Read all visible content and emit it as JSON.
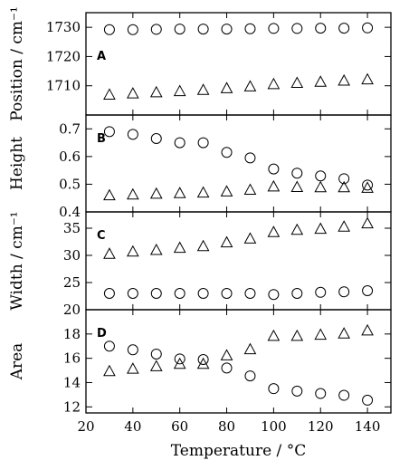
{
  "chart_data": [
    {
      "type": "scatter",
      "panel_label": "A",
      "ylabel": "Position / cm⁻¹",
      "xlim": [
        20,
        150
      ],
      "ylim": [
        1700,
        1735
      ],
      "yticks": [
        1710,
        1720,
        1730
      ],
      "grid": false,
      "series": [
        {
          "marker": "circle",
          "x": [
            30,
            40,
            50,
            60,
            70,
            80,
            90,
            100,
            110,
            120,
            130,
            140
          ],
          "y": [
            1729.2,
            1729.2,
            1729.3,
            1729.4,
            1729.4,
            1729.4,
            1729.5,
            1729.6,
            1729.6,
            1729.7,
            1729.7,
            1729.8
          ]
        },
        {
          "marker": "triangle",
          "x": [
            30,
            40,
            50,
            60,
            70,
            80,
            90,
            100,
            110,
            120,
            130,
            140
          ],
          "y": [
            1706.8,
            1707.2,
            1707.6,
            1708.0,
            1708.4,
            1709.0,
            1709.6,
            1710.4,
            1710.8,
            1711.2,
            1711.6,
            1712.0
          ]
        }
      ]
    },
    {
      "type": "scatter",
      "panel_label": "B",
      "ylabel": "Height",
      "xlim": [
        20,
        150
      ],
      "ylim": [
        0.4,
        0.75
      ],
      "yticks": [
        "0.4",
        "0.5",
        "0.6",
        "0.7"
      ],
      "grid": false,
      "series": [
        {
          "marker": "circle",
          "x": [
            30,
            40,
            50,
            60,
            70,
            80,
            90,
            100,
            110,
            120,
            130,
            140
          ],
          "y": [
            0.69,
            0.68,
            0.665,
            0.65,
            0.65,
            0.615,
            0.595,
            0.555,
            0.54,
            0.53,
            0.52,
            0.497
          ]
        },
        {
          "marker": "triangle",
          "x": [
            30,
            40,
            50,
            60,
            70,
            80,
            90,
            100,
            110,
            120,
            130,
            140
          ],
          "y": [
            0.458,
            0.461,
            0.464,
            0.466,
            0.468,
            0.472,
            0.478,
            0.49,
            0.488,
            0.487,
            0.487,
            0.485
          ]
        }
      ]
    },
    {
      "type": "scatter",
      "panel_label": "C",
      "ylabel": "Width / cm⁻¹",
      "xlim": [
        20,
        150
      ],
      "ylim": [
        20,
        38
      ],
      "yticks": [
        20,
        25,
        30,
        35
      ],
      "grid": false,
      "series": [
        {
          "marker": "triangle",
          "x": [
            30,
            40,
            50,
            60,
            70,
            80,
            90,
            100,
            110,
            120,
            130,
            140
          ],
          "y": [
            30.2,
            30.6,
            30.9,
            31.3,
            31.6,
            32.3,
            33.0,
            34.2,
            34.6,
            34.8,
            35.2,
            35.8
          ]
        },
        {
          "marker": "circle",
          "x": [
            30,
            40,
            50,
            60,
            70,
            80,
            90,
            100,
            110,
            120,
            130,
            140
          ],
          "y": [
            23.0,
            23.0,
            23.0,
            23.0,
            23.0,
            23.0,
            23.0,
            22.8,
            23.0,
            23.2,
            23.3,
            23.5
          ]
        }
      ]
    },
    {
      "type": "scatter",
      "panel_label": "D",
      "ylabel": "Area",
      "xlabel": "Temperature / °C",
      "xlim": [
        20,
        150
      ],
      "ylim": [
        11.5,
        20
      ],
      "yticks": [
        12,
        14,
        16,
        18
      ],
      "xticks": [
        20,
        40,
        60,
        80,
        100,
        120,
        140
      ],
      "grid": false,
      "series": [
        {
          "marker": "circle",
          "x": [
            30,
            40,
            50,
            60,
            70,
            80,
            90,
            100,
            110,
            120,
            130,
            140
          ],
          "y": [
            17.0,
            16.7,
            16.35,
            15.95,
            15.9,
            15.2,
            14.55,
            13.5,
            13.3,
            13.1,
            12.95,
            12.55
          ]
        },
        {
          "marker": "triangle",
          "x": [
            30,
            40,
            50,
            60,
            70,
            80,
            90,
            100,
            110,
            120,
            130,
            140
          ],
          "y": [
            14.9,
            15.1,
            15.3,
            15.5,
            15.5,
            16.2,
            16.7,
            17.8,
            17.8,
            17.9,
            18.0,
            18.25
          ]
        }
      ]
    }
  ]
}
